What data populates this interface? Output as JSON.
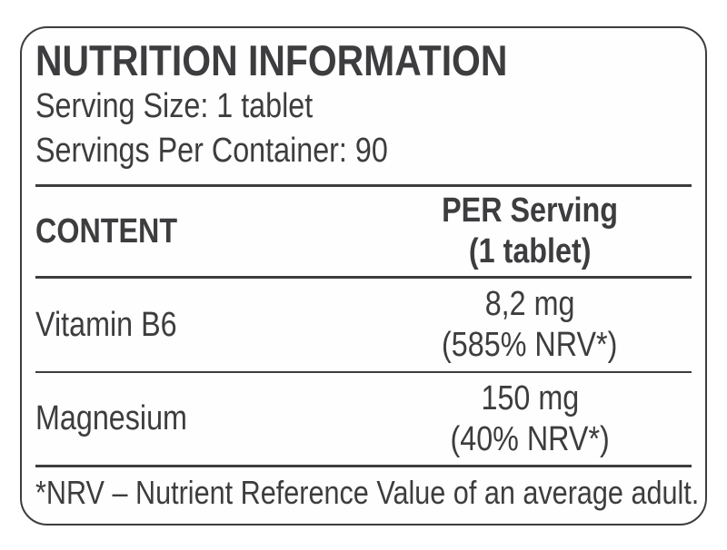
{
  "label": {
    "title": "NUTRITION INFORMATION",
    "serving_size": "Serving Size: 1 tablet",
    "servings_per_container": "Servings Per Container: 90",
    "table": {
      "content_header": "CONTENT",
      "per_serving_header_line1": "PER Serving",
      "per_serving_header_line2": "(1 tablet)",
      "rows": [
        {
          "name": "Vitamin B6",
          "amount": "8,2 mg",
          "nrv": "(585% NRV*)"
        },
        {
          "name": "Magnesium",
          "amount": "150 mg",
          "nrv": "(40% NRV*)"
        }
      ]
    },
    "footnote": "*NRV – Nutrient Reference Value of an average adult."
  },
  "colors": {
    "text": "#3d3d3f",
    "border": "#3d3d3f",
    "background": "#ffffff"
  }
}
